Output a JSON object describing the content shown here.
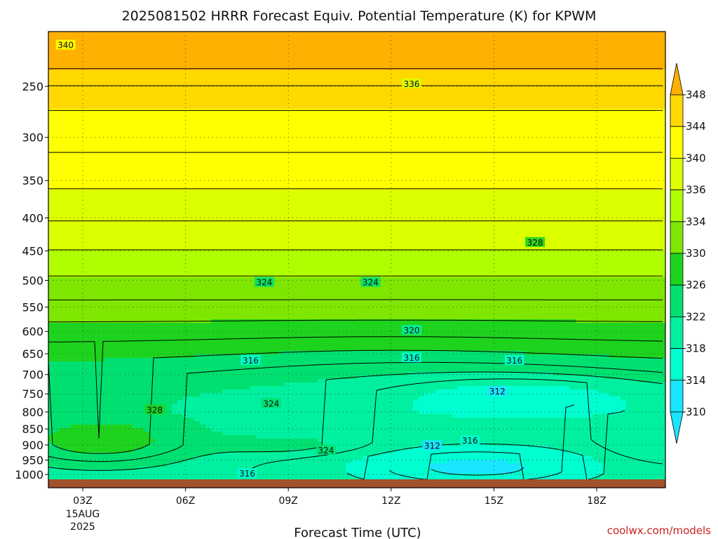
{
  "chart_data": {
    "type": "heatmap",
    "title": "2025081502 HRRR Forecast Equiv. Potential Temperature (K) for KPWM",
    "xlabel": "Forecast Time (UTC)",
    "ylabel": "",
    "x_ticks": [
      "03Z",
      "06Z",
      "09Z",
      "12Z",
      "15Z",
      "18Z"
    ],
    "x_hours": [
      3,
      6,
      9,
      12,
      15,
      18
    ],
    "x_date_label": [
      "15AUG",
      "2025"
    ],
    "xlim_hours": [
      2,
      20
    ],
    "y_ticks": [
      250,
      300,
      350,
      400,
      450,
      500,
      550,
      600,
      650,
      700,
      750,
      800,
      850,
      900,
      950,
      1000
    ],
    "ylim_hpa": [
      1025,
      200
    ],
    "y_scale": "log",
    "grid": "dotted",
    "legend_placement": "right",
    "colorbar_levels": [
      310,
      314,
      318,
      322,
      326,
      330,
      334,
      336,
      340,
      344,
      348
    ],
    "colorbar_colors": [
      "#19e6ff",
      "#00ffd0",
      "#00f0a0",
      "#00e070",
      "#1ed31e",
      "#7ee600",
      "#b0ff00",
      "#dcff00",
      "#ffff00",
      "#ffd800",
      "#ffb000"
    ],
    "contour_labels": [
      {
        "value": 340,
        "hour": 2.5,
        "p": 216
      },
      {
        "value": 336,
        "hour": 12.6,
        "p": 248
      },
      {
        "value": 328,
        "hour": 16.2,
        "p": 437
      },
      {
        "value": 324,
        "hour": 8.3,
        "p": 504
      },
      {
        "value": 324,
        "hour": 11.4,
        "p": 504
      },
      {
        "value": 320,
        "hour": 12.6,
        "p": 598
      },
      {
        "value": 316,
        "hour": 7.9,
        "p": 666
      },
      {
        "value": 316,
        "hour": 12.6,
        "p": 660
      },
      {
        "value": 316,
        "hour": 15.6,
        "p": 666
      },
      {
        "value": 312,
        "hour": 15.1,
        "p": 744
      },
      {
        "value": 328,
        "hour": 5.1,
        "p": 795
      },
      {
        "value": 324,
        "hour": 8.5,
        "p": 777
      },
      {
        "value": 324,
        "hour": 10.1,
        "p": 918
      },
      {
        "value": 312,
        "hour": 13.2,
        "p": 903
      },
      {
        "value": 316,
        "hour": 14.3,
        "p": 887
      },
      {
        "value": 316,
        "hour": 7.8,
        "p": 998
      }
    ]
  },
  "credit": "coolwx.com/models",
  "colors": {
    "ground": "#a0522d",
    "contour": "#000000",
    "background": "#ffffff"
  }
}
